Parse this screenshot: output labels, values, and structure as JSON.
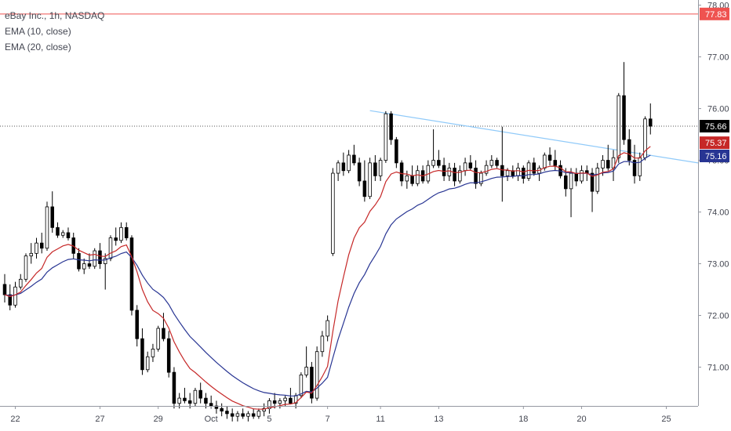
{
  "legend": {
    "title": "eBay Inc., 1h, NASDAQ",
    "ema10": "EMA (10, close)",
    "ema20": "EMA (20, close)"
  },
  "colors": {
    "up": "#ffffff",
    "down": "#000000",
    "outline": "#000000",
    "ema10": "#c62828",
    "ema20": "#283593",
    "trendline": "#90caf9",
    "redline": "#ef5350",
    "price_tag": "#000000",
    "ema10_tag": "#c62828",
    "ema20_tag": "#283593",
    "redline_tag": "#ef5350"
  },
  "chart_data": {
    "type": "candlestick",
    "title": "eBay Inc., 1h, NASDAQ",
    "ylim": [
      70.25,
      78.1
    ],
    "xlim": [
      0,
      131
    ],
    "y_ticks": [
      "78.00",
      "77.00",
      "76.00",
      "75.00",
      "74.00",
      "73.00",
      "72.00",
      "71.00"
    ],
    "y_tick_values": [
      78,
      77,
      76,
      75,
      74,
      73,
      72,
      71
    ],
    "x_ticks": [
      {
        "label": "22",
        "bar": 2
      },
      {
        "label": "27",
        "bar": 18
      },
      {
        "label": "29",
        "bar": 29
      },
      {
        "label": "Oct",
        "bar": 39
      },
      {
        "label": "5",
        "bar": 50
      },
      {
        "label": "7",
        "bar": 61
      },
      {
        "label": "11",
        "bar": 71
      },
      {
        "label": "13",
        "bar": 82
      },
      {
        "label": "18",
        "bar": 98
      },
      {
        "label": "20",
        "bar": 109
      },
      {
        "label": "25",
        "bar": 125
      }
    ],
    "price_tags": {
      "last": "75.66",
      "ema10": "75.37",
      "ema20": "75.16",
      "redline": "77.83"
    },
    "horizontal_line": 77.83,
    "last_price_line": 75.66,
    "trendline": [
      [
        69,
        75.96
      ],
      [
        131,
        74.95
      ]
    ],
    "candles": [
      [
        72.6,
        72.8,
        72.25,
        72.4
      ],
      [
        72.4,
        72.6,
        72.1,
        72.2
      ],
      [
        72.2,
        72.65,
        72.15,
        72.55
      ],
      [
        72.55,
        72.8,
        72.5,
        72.7
      ],
      [
        72.7,
        73.2,
        72.65,
        73.15
      ],
      [
        73.15,
        73.4,
        73.0,
        73.2
      ],
      [
        73.2,
        73.5,
        73.1,
        73.4
      ],
      [
        73.4,
        73.6,
        73.2,
        73.3
      ],
      [
        73.3,
        74.2,
        73.25,
        74.1
      ],
      [
        74.1,
        74.4,
        73.6,
        73.7
      ],
      [
        73.7,
        73.8,
        73.5,
        73.55
      ],
      [
        73.55,
        73.65,
        73.5,
        73.6
      ],
      [
        73.6,
        73.7,
        73.45,
        73.5
      ],
      [
        73.5,
        73.6,
        73.1,
        73.2
      ],
      [
        73.2,
        73.3,
        72.85,
        72.9
      ],
      [
        72.9,
        73.1,
        72.8,
        73.0
      ],
      [
        73.0,
        73.2,
        72.9,
        72.95
      ],
      [
        72.95,
        73.3,
        72.9,
        73.25
      ],
      [
        73.25,
        73.4,
        72.9,
        73.0
      ],
      [
        73.0,
        73.2,
        72.5,
        73.1
      ],
      [
        73.1,
        73.55,
        73.05,
        73.5
      ],
      [
        73.5,
        73.7,
        73.35,
        73.45
      ],
      [
        73.45,
        73.8,
        73.4,
        73.7
      ],
      [
        73.7,
        73.8,
        73.45,
        73.5
      ],
      [
        73.5,
        73.55,
        72.0,
        72.1
      ],
      [
        72.1,
        72.2,
        71.4,
        71.55
      ],
      [
        71.55,
        71.75,
        70.85,
        70.95
      ],
      [
        70.95,
        71.3,
        70.9,
        71.2
      ],
      [
        71.2,
        71.45,
        71.1,
        71.35
      ],
      [
        71.35,
        71.8,
        71.3,
        71.75
      ],
      [
        71.75,
        72.05,
        71.5,
        71.55
      ],
      [
        71.55,
        71.7,
        70.8,
        70.9
      ],
      [
        70.9,
        71.0,
        70.2,
        70.3
      ],
      [
        70.3,
        70.5,
        70.2,
        70.4
      ],
      [
        70.4,
        70.6,
        70.3,
        70.35
      ],
      [
        70.35,
        70.5,
        70.2,
        70.3
      ],
      [
        70.3,
        70.6,
        70.25,
        70.55
      ],
      [
        70.55,
        70.7,
        70.3,
        70.4
      ],
      [
        70.4,
        70.5,
        70.2,
        70.3
      ],
      [
        70.3,
        70.45,
        70.2,
        70.25
      ],
      [
        70.25,
        70.35,
        70.1,
        70.2
      ],
      [
        70.2,
        70.3,
        70.05,
        70.15
      ],
      [
        70.15,
        70.25,
        70.0,
        70.1
      ],
      [
        70.1,
        70.2,
        69.95,
        70.05
      ],
      [
        70.05,
        70.15,
        69.95,
        70.1
      ],
      [
        70.1,
        70.2,
        70.0,
        70.05
      ],
      [
        70.05,
        70.15,
        69.95,
        70.1
      ],
      [
        70.1,
        70.2,
        70.0,
        70.05
      ],
      [
        70.05,
        70.2,
        70.0,
        70.15
      ],
      [
        70.15,
        70.3,
        70.05,
        70.2
      ],
      [
        70.2,
        70.4,
        70.1,
        70.35
      ],
      [
        70.35,
        70.5,
        70.2,
        70.3
      ],
      [
        70.3,
        70.4,
        70.2,
        70.35
      ],
      [
        70.35,
        70.45,
        70.25,
        70.4
      ],
      [
        70.4,
        70.6,
        70.3,
        70.3
      ],
      [
        70.3,
        70.5,
        70.2,
        70.45
      ],
      [
        70.45,
        70.9,
        70.4,
        70.85
      ],
      [
        70.85,
        71.4,
        70.8,
        71.0
      ],
      [
        71.0,
        71.1,
        70.3,
        70.4
      ],
      [
        70.4,
        71.4,
        70.35,
        71.3
      ],
      [
        71.3,
        71.7,
        71.2,
        71.6
      ],
      [
        71.6,
        72.0,
        71.5,
        71.9
      ],
      [
        73.2,
        74.85,
        73.15,
        74.75
      ],
      [
        74.75,
        75.0,
        74.6,
        74.95
      ],
      [
        74.95,
        75.15,
        74.7,
        74.8
      ],
      [
        74.8,
        75.2,
        74.75,
        75.1
      ],
      [
        75.1,
        75.3,
        74.9,
        74.95
      ],
      [
        74.95,
        75.05,
        74.5,
        74.6
      ],
      [
        74.6,
        75.0,
        74.2,
        74.3
      ],
      [
        74.3,
        75.05,
        74.25,
        74.95
      ],
      [
        74.95,
        75.1,
        74.6,
        74.7
      ],
      [
        74.7,
        75.05,
        74.6,
        75.0
      ],
      [
        75.0,
        75.95,
        74.95,
        75.9
      ],
      [
        75.9,
        75.95,
        75.3,
        75.4
      ],
      [
        75.4,
        75.45,
        74.85,
        74.95
      ],
      [
        74.95,
        75.0,
        74.5,
        74.6
      ],
      [
        74.6,
        74.8,
        74.45,
        74.7
      ],
      [
        74.7,
        74.9,
        74.5,
        74.55
      ],
      [
        74.55,
        74.9,
        74.5,
        74.8
      ],
      [
        74.8,
        74.9,
        74.55,
        74.6
      ],
      [
        74.6,
        75.0,
        74.55,
        74.9
      ],
      [
        74.9,
        75.6,
        74.85,
        75.0
      ],
      [
        75.0,
        75.2,
        74.85,
        74.9
      ],
      [
        74.9,
        75.05,
        74.6,
        74.7
      ],
      [
        74.7,
        74.95,
        74.6,
        74.85
      ],
      [
        74.85,
        74.95,
        74.5,
        74.6
      ],
      [
        74.6,
        74.9,
        74.55,
        74.8
      ],
      [
        74.8,
        75.05,
        74.7,
        74.95
      ],
      [
        74.95,
        75.1,
        74.8,
        74.85
      ],
      [
        74.85,
        75.0,
        74.45,
        74.55
      ],
      [
        74.55,
        74.8,
        74.5,
        74.75
      ],
      [
        74.75,
        75.0,
        74.7,
        74.9
      ],
      [
        74.9,
        75.1,
        74.85,
        75.0
      ],
      [
        75.0,
        75.05,
        74.85,
        74.9
      ],
      [
        74.9,
        75.65,
        74.2,
        74.7
      ],
      [
        74.7,
        74.85,
        74.6,
        74.8
      ],
      [
        74.8,
        74.9,
        74.65,
        74.7
      ],
      [
        74.7,
        74.95,
        74.6,
        74.85
      ],
      [
        74.85,
        74.9,
        74.55,
        74.65
      ],
      [
        74.65,
        75.0,
        74.6,
        74.95
      ],
      [
        74.95,
        75.05,
        74.7,
        74.75
      ],
      [
        74.75,
        74.9,
        74.6,
        74.85
      ],
      [
        74.85,
        75.15,
        74.8,
        75.1
      ],
      [
        75.1,
        75.25,
        74.9,
        75.0
      ],
      [
        75.0,
        75.2,
        74.8,
        74.9
      ],
      [
        74.9,
        75.0,
        74.65,
        74.7
      ],
      [
        74.7,
        74.85,
        74.3,
        74.45
      ],
      [
        74.45,
        74.85,
        73.9,
        74.75
      ],
      [
        74.75,
        74.85,
        74.5,
        74.6
      ],
      [
        74.6,
        74.9,
        74.55,
        74.8
      ],
      [
        74.8,
        74.9,
        74.6,
        74.75
      ],
      [
        74.75,
        74.85,
        74.0,
        74.4
      ],
      [
        74.4,
        74.95,
        74.35,
        74.85
      ],
      [
        74.85,
        75.1,
        74.7,
        75.0
      ],
      [
        75.0,
        75.3,
        74.8,
        74.85
      ],
      [
        74.85,
        75.2,
        74.6,
        75.05
      ],
      [
        75.05,
        76.3,
        74.95,
        76.25
      ],
      [
        76.25,
        76.9,
        75.3,
        75.4
      ],
      [
        75.4,
        75.6,
        74.9,
        75.0
      ],
      [
        75.0,
        75.3,
        74.55,
        74.7
      ],
      [
        74.7,
        75.15,
        74.6,
        75.05
      ],
      [
        75.05,
        75.85,
        75.0,
        75.8
      ],
      [
        75.8,
        76.1,
        75.5,
        75.66
      ]
    ]
  }
}
